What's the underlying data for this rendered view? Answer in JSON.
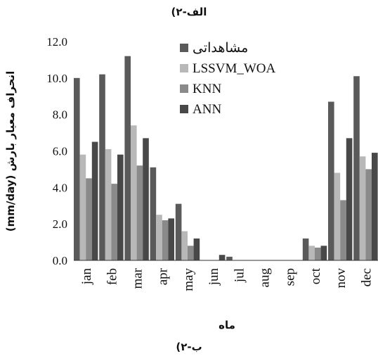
{
  "top_title": "الف-۲)",
  "bottom_caption": "ب-۲)",
  "chart_data": {
    "type": "bar",
    "title": "الف-۲)",
    "xlabel": "ماه",
    "ylabel": "انحراف معیار بارش (mm/day)",
    "ylim": [
      0,
      12
    ],
    "y_ticks": [
      "0.0",
      "2.0",
      "4.0",
      "6.0",
      "8.0",
      "10.0",
      "12.0"
    ],
    "grid": false,
    "legend_position": "top-center",
    "categories": [
      "jan",
      "feb",
      "mar",
      "apr",
      "may",
      "jun",
      "jul",
      "aug",
      "sep",
      "oct",
      "nov",
      "dec"
    ],
    "series": [
      {
        "name": "مشاهداتی",
        "color": "#5a5a5a",
        "values": [
          10.0,
          10.2,
          11.2,
          5.1,
          3.1,
          0.0,
          0.2,
          0.0,
          0.0,
          1.2,
          8.7,
          10.1
        ]
      },
      {
        "name": "LSSVM_WOA",
        "color": "#b8b8b8",
        "values": [
          5.8,
          6.1,
          7.4,
          2.5,
          1.6,
          0.0,
          0.0,
          0.0,
          0.0,
          0.8,
          4.8,
          5.7
        ]
      },
      {
        "name": "KNN",
        "color": "#8a8a8a",
        "values": [
          4.5,
          4.2,
          5.2,
          2.2,
          0.8,
          0.0,
          0.0,
          0.0,
          0.0,
          0.7,
          3.3,
          5.0
        ]
      },
      {
        "name": "ANN",
        "color": "#484848",
        "values": [
          6.5,
          5.8,
          6.7,
          2.3,
          1.2,
          0.3,
          0.0,
          0.0,
          0.0,
          0.8,
          6.7,
          5.9
        ]
      }
    ]
  }
}
